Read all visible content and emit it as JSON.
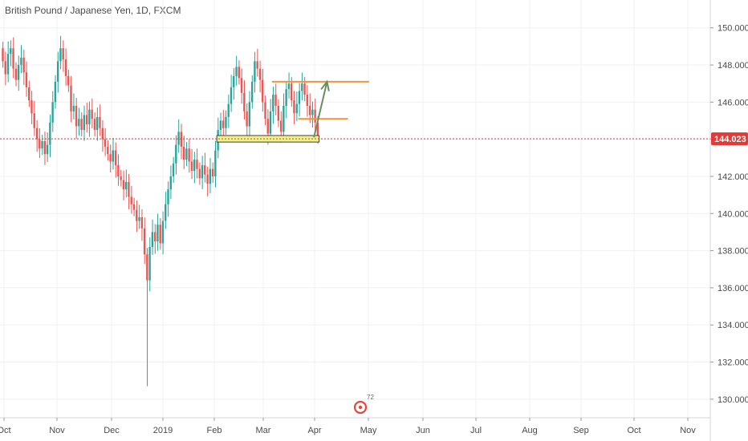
{
  "chart_title": "British Pound / Japanese Yen, 1D, FXCM",
  "colors": {
    "up": "#26a69a",
    "down": "#ef5350",
    "grid": "#eef0f3",
    "axis_text": "#4a4a4a",
    "price_line": "#e53935",
    "orange": "#f5933a",
    "green_arrow": "#6b8e63",
    "support_fill": "#eef28a",
    "support_stroke": "#3f3f3f"
  },
  "watermark": {
    "icon": "tradingview-logo-icon",
    "text": "72"
  },
  "current_price_label": "144.023",
  "chart_data": {
    "type": "candlestick",
    "title": "British Pound / Japanese Yen, 1D, FXCM",
    "ylim": [
      129.0,
      151.5
    ],
    "y_ticks": [
      130,
      132,
      134,
      136,
      138,
      140,
      142,
      144,
      146,
      148,
      150
    ],
    "y_tick_labels": [
      "130.000",
      "132.000",
      "134.000",
      "136.000",
      "138.000",
      "140.000",
      "142.000",
      "144.000",
      "146.000",
      "148.000",
      "150.000"
    ],
    "x_tick_labels": [
      "Oct",
      "Nov",
      "Dec",
      "2019",
      "Feb",
      "Mar",
      "Apr",
      "May",
      "Jun",
      "Jul",
      "Aug",
      "Sep",
      "Oct",
      "Nov"
    ],
    "current_price": 144.023,
    "grid": true,
    "series": [
      {
        "name": "GBPJPY",
        "closes": [
          148.2,
          147.5,
          148.6,
          148.9,
          147.8,
          147.2,
          148.0,
          148.4,
          147.6,
          146.8,
          146.1,
          145.4,
          144.6,
          144.0,
          143.5,
          143.9,
          143.2,
          143.7,
          144.9,
          146.0,
          147.1,
          148.2,
          148.9,
          148.3,
          147.4,
          146.9,
          145.5,
          145.8,
          144.7,
          145.1,
          144.5,
          145.3,
          144.8,
          145.6,
          145.1,
          144.5,
          145.2,
          144.6,
          144.0,
          143.6,
          143.2,
          142.8,
          143.4,
          142.6,
          142.0,
          141.8,
          141.3,
          141.7,
          140.9,
          140.5,
          140.2,
          139.6,
          139.8,
          139.2,
          137.8,
          136.4,
          138.2,
          139.0,
          138.5,
          139.4,
          138.4,
          139.6,
          140.5,
          141.3,
          142.0,
          142.7,
          143.7,
          144.4,
          143.6,
          142.9,
          143.5,
          142.8,
          142.3,
          142.9,
          142.4,
          141.9,
          142.6,
          142.1,
          141.6,
          142.4,
          142.0,
          143.4,
          144.5,
          145.0,
          144.6,
          145.2,
          145.9,
          146.8,
          147.4,
          147.9,
          147.3,
          146.5,
          145.5,
          144.7,
          146.0,
          147.1,
          148.2,
          147.8,
          147.2,
          146.0,
          145.1,
          144.3,
          145.5,
          146.4,
          145.8,
          145.0,
          144.4,
          145.8,
          146.7,
          147.0,
          146.1,
          145.4,
          145.9,
          146.6,
          147.0,
          146.4,
          145.8,
          145.3,
          145.6,
          144.9,
          144.1
        ],
        "open_first": 148.9
      }
    ],
    "annotations": {
      "support_zone": {
        "low": 143.85,
        "high": 144.2,
        "from_bar": 82,
        "to_bar": 121
      },
      "orange_top": {
        "price": 147.1,
        "from_bar": 103,
        "to_bar": 140
      },
      "orange_mid": {
        "price": 145.1,
        "from_bar": 113,
        "to_bar": 132
      },
      "arrow": {
        "from_price": 144.1,
        "to_price": 147.1,
        "from_bar": 119,
        "to_bar": 124
      },
      "spike_low": {
        "bar": 55,
        "price": 130.7
      }
    }
  }
}
